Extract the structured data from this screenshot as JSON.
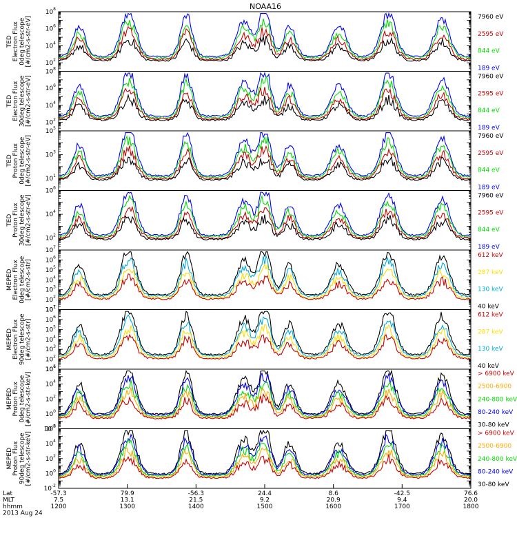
{
  "title": "NOAA16",
  "chart_data": [
    {
      "type": "line",
      "instrument": [
        "TED",
        "Electron Flux",
        "0deg telescope",
        "[#/cm2-s-str-eV]"
      ],
      "yticks": [
        {
          "exp": "2",
          "value": 100
        },
        {
          "exp": "4",
          "value": 10000
        },
        {
          "exp": "6",
          "value": 1000000
        },
        {
          "exp": "8",
          "value": 100000000
        }
      ],
      "ylim": [
        10,
        100000000
      ],
      "yscale": "log",
      "series": [
        {
          "name": "7960 eV",
          "color": "#000000"
        },
        {
          "name": "2595 eV",
          "color": "#cc0000"
        },
        {
          "name": "844 eV",
          "color": "#00dd00"
        },
        {
          "name": "189 eV",
          "color": "#0000ff"
        }
      ]
    },
    {
      "type": "line",
      "instrument": [
        "TED",
        "Electron Flux",
        "30deg telescope",
        "[#/cm2-s-str-eV]"
      ],
      "yticks": [
        {
          "exp": "2",
          "value": 100
        },
        {
          "exp": "4",
          "value": 10000
        },
        {
          "exp": "6",
          "value": 1000000
        },
        {
          "exp": "8",
          "value": 100000000
        }
      ],
      "ylim": [
        10,
        100000000
      ],
      "yscale": "log",
      "series": [
        {
          "name": "7960 eV",
          "color": "#000000"
        },
        {
          "name": "2595 eV",
          "color": "#cc0000"
        },
        {
          "name": "844 eV",
          "color": "#00dd00"
        },
        {
          "name": "189 eV",
          "color": "#0000ff"
        }
      ]
    },
    {
      "type": "line",
      "instrument": [
        "TED",
        "Proton Flux",
        "0deg telescope",
        "[#/cm2-s-str-eV]"
      ],
      "yticks": [
        {
          "exp": "1",
          "value": 10
        },
        {
          "exp": "3",
          "value": 1000
        },
        {
          "exp": "5",
          "value": 100000
        }
      ],
      "ylim": [
        1,
        100000
      ],
      "yscale": "log",
      "series": [
        {
          "name": "7960 eV",
          "color": "#000000"
        },
        {
          "name": "2595 eV",
          "color": "#cc0000"
        },
        {
          "name": "844 eV",
          "color": "#00dd00"
        },
        {
          "name": "189 eV",
          "color": "#0000ff"
        }
      ]
    },
    {
      "type": "line",
      "instrument": [
        "TED",
        "Proton Flux",
        "30deg telescope",
        "[#/cm2-s-str-eV]"
      ],
      "yticks": [
        {
          "exp": "2",
          "value": 100
        },
        {
          "exp": "4",
          "value": 10000
        },
        {
          "exp": "6",
          "value": 1000000
        }
      ],
      "ylim": [
        10,
        1000000
      ],
      "yscale": "log",
      "series": [
        {
          "name": "7960 eV",
          "color": "#000000"
        },
        {
          "name": "2595 eV",
          "color": "#cc0000"
        },
        {
          "name": "844 eV",
          "color": "#00dd00"
        },
        {
          "name": "189 eV",
          "color": "#0000ff"
        }
      ]
    },
    {
      "type": "line",
      "instrument": [
        "MEPED",
        "Electron Flux",
        "0deg telescope",
        "[#/cm2-s-str]"
      ],
      "yticks": [
        {
          "exp": "1",
          "value": 10
        },
        {
          "exp": "2",
          "value": 100
        },
        {
          "exp": "3",
          "value": 1000
        },
        {
          "exp": "4",
          "value": 10000
        },
        {
          "exp": "5",
          "value": 100000
        },
        {
          "exp": "6",
          "value": 1000000
        },
        {
          "exp": "7",
          "value": 10000000
        }
      ],
      "ylim": [
        10,
        10000000
      ],
      "yscale": "log",
      "series": [
        {
          "name": "612 keV",
          "color": "#cc0000"
        },
        {
          "name": "287 keV",
          "color": "#ffdd00"
        },
        {
          "name": "130 keV",
          "color": "#00aadd"
        },
        {
          "name": "40 keV",
          "color": "#000000"
        }
      ]
    },
    {
      "type": "line",
      "instrument": [
        "MEPED",
        "Electron Flux",
        "90deg telescope",
        "[#/cm2-s-str]"
      ],
      "yticks": [
        {
          "exp": "1",
          "value": 10
        },
        {
          "exp": "2",
          "value": 100
        },
        {
          "exp": "3",
          "value": 1000
        },
        {
          "exp": "4",
          "value": 10000
        },
        {
          "exp": "5",
          "value": 100000
        },
        {
          "exp": "6",
          "value": 1000000
        },
        {
          "exp": "7",
          "value": 10000000
        }
      ],
      "ylim": [
        10,
        10000000
      ],
      "yscale": "log",
      "series": [
        {
          "name": "612 keV",
          "color": "#cc0000"
        },
        {
          "name": "287 keV",
          "color": "#ffdd00"
        },
        {
          "name": "130 keV",
          "color": "#00aadd"
        },
        {
          "name": "40 keV",
          "color": "#000000"
        }
      ]
    },
    {
      "type": "line",
      "instrument": [
        "MEPED",
        "Proton Flux",
        "0deg telescope",
        "[#/cm2-s-str-keV]"
      ],
      "yticks": [
        {
          "exp": "-2",
          "value": 0.01
        },
        {
          "exp": "0",
          "value": 1
        },
        {
          "exp": "2",
          "value": 100
        },
        {
          "exp": "4",
          "value": 10000
        },
        {
          "exp": "6",
          "value": 1000000
        }
      ],
      "ylim": [
        0.01,
        1000000
      ],
      "yscale": "log",
      "series": [
        {
          "name": "> 6900 keV",
          "color": "#cc0000"
        },
        {
          "name": "2500-6900",
          "color": "#ffaa00"
        },
        {
          "name": "240-800 keV",
          "color": "#00dd00"
        },
        {
          "name": "80-240 keV",
          "color": "#0000ff"
        },
        {
          "name": "30-80 keV",
          "color": "#000000"
        }
      ]
    },
    {
      "type": "line",
      "instrument": [
        "MEPED",
        "Proton Flux",
        "90deg telescope",
        "[#/cm2-s-str-keV]"
      ],
      "yticks": [
        {
          "exp": "-2",
          "value": 0.01
        },
        {
          "exp": "0",
          "value": 1
        },
        {
          "exp": "2",
          "value": 100
        },
        {
          "exp": "4",
          "value": 10000
        },
        {
          "exp": "6",
          "value": 1000000
        }
      ],
      "ylim": [
        0.01,
        1000000
      ],
      "yscale": "log",
      "series": [
        {
          "name": "> 6900 keV",
          "color": "#cc0000"
        },
        {
          "name": "2500-6900",
          "color": "#ffaa00"
        },
        {
          "name": "240-800 keV",
          "color": "#00dd00"
        },
        {
          "name": "80-240 keV",
          "color": "#0000ff"
        },
        {
          "name": "30-80 keV",
          "color": "#000000"
        }
      ]
    }
  ],
  "xaxis": {
    "row_labels": [
      "Lat",
      "MLT",
      "hhmm"
    ],
    "date": "2013 Aug 24",
    "ticks": [
      {
        "lat": "-57.3",
        "mlt": "7.5",
        "hhmm": "1200"
      },
      {
        "lat": "79.9",
        "mlt": "13.1",
        "hhmm": "1300"
      },
      {
        "lat": "-56.3",
        "mlt": "21.5",
        "hhmm": "1400"
      },
      {
        "lat": "24.4",
        "mlt": "9.2",
        "hhmm": "1500"
      },
      {
        "lat": "8.6",
        "mlt": "20.9",
        "hhmm": "1600"
      },
      {
        "lat": "-42.5",
        "mlt": "9.4",
        "hhmm": "1700"
      },
      {
        "lat": "76.6",
        "mlt": "20.0",
        "hhmm": "1800"
      }
    ]
  }
}
